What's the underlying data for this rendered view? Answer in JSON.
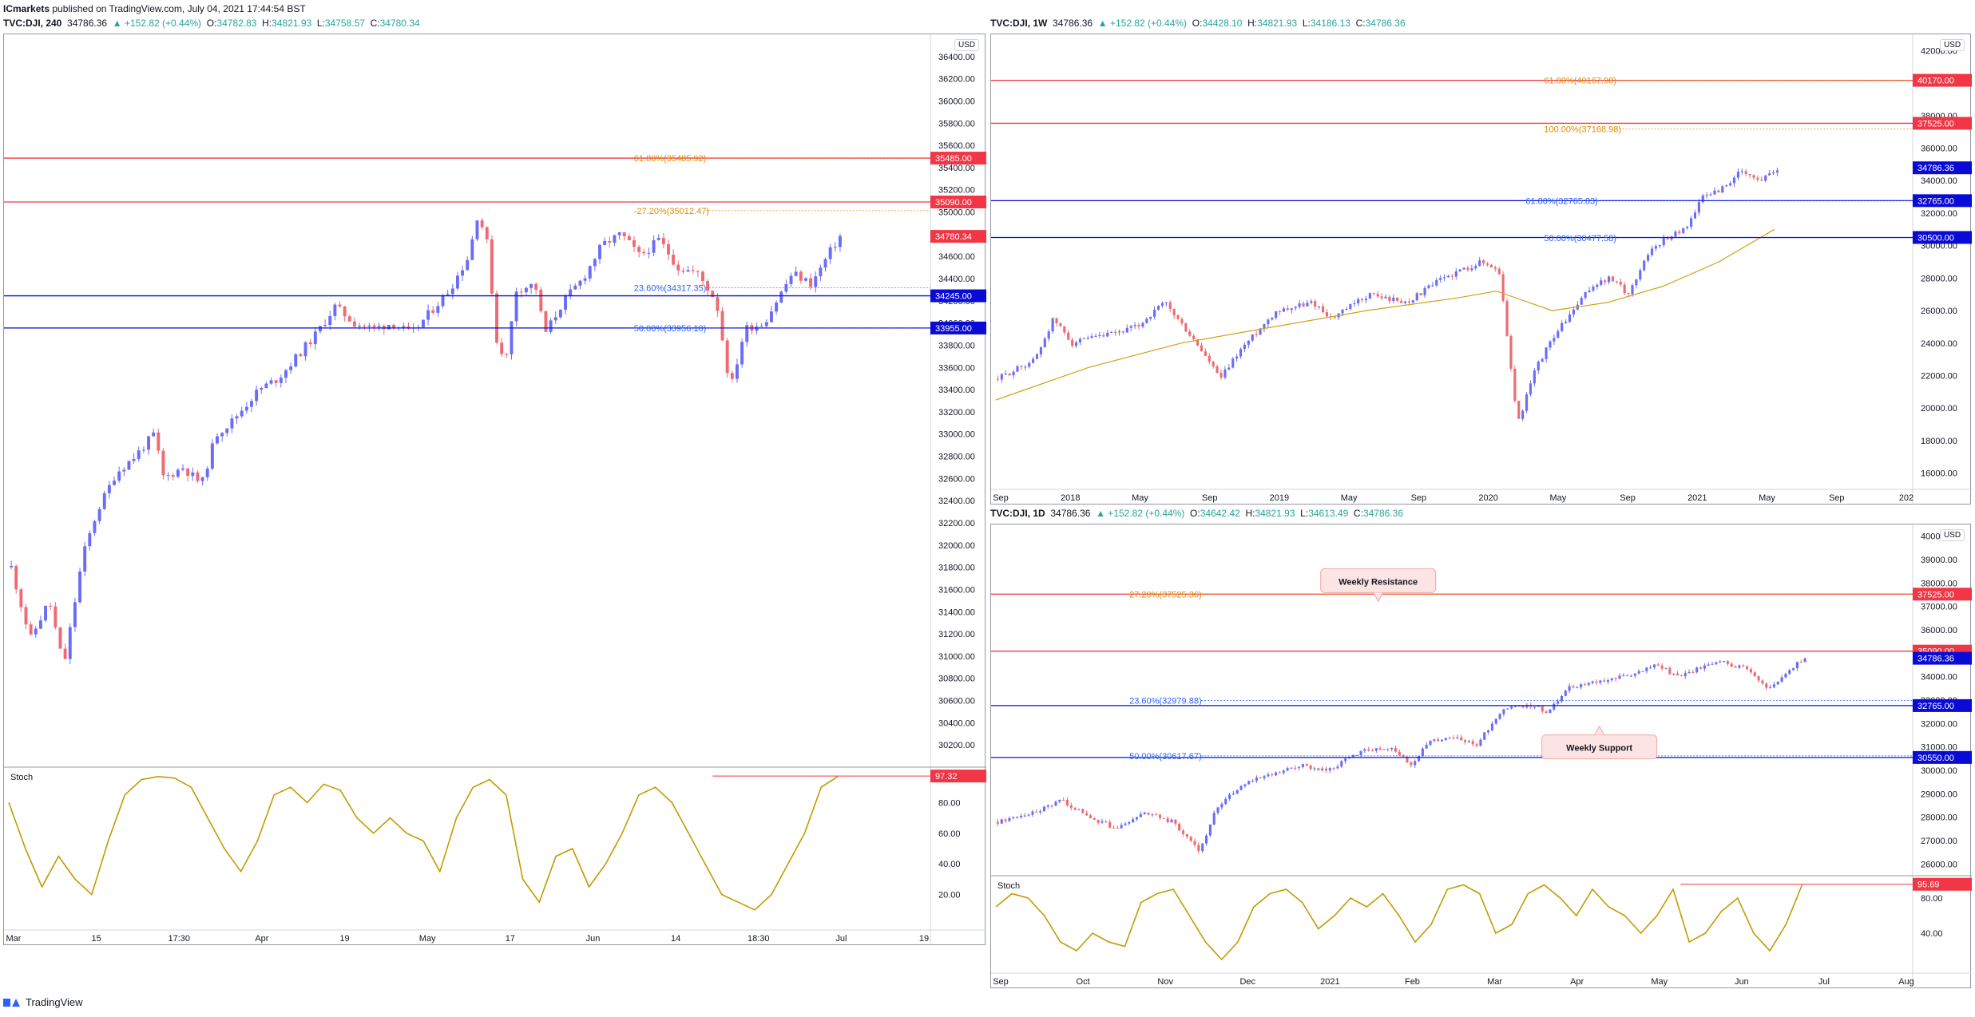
{
  "publish": {
    "author": "ICmarkets",
    "text": " published on TradingView.com, July 04, 2021 17:44:54 BST"
  },
  "footer": {
    "brand": "TradingView"
  },
  "colors": {
    "up": "#6b6ef5",
    "down": "#ef6b73",
    "resistance": "#f23645",
    "support": "#0a0ad6",
    "fib_orange": "#e08b00",
    "fib_blue": "#2962ff",
    "stoch": "#c49a00",
    "ma": "#d4a017"
  },
  "chart_data": [
    {
      "id": "dji-240",
      "type": "candlestick",
      "header": {
        "symbol": "TVC:DJI, 240",
        "last": "34786.36",
        "change": "▲ +152.82 (+0.44%)",
        "o": "34782.83",
        "h": "34821.93",
        "l": "34758.57",
        "c": "34780.34"
      },
      "currency": "USD",
      "ylim": [
        30000,
        36600
      ],
      "yticks": [
        "36400.00",
        "36200.00",
        "36000.00",
        "35800.00",
        "35600.00",
        "35400.00",
        "35200.00",
        "35000.00",
        "34800.00",
        "34600.00",
        "34400.00",
        "34200.00",
        "34000.00",
        "33800.00",
        "33600.00",
        "33400.00",
        "33200.00",
        "33000.00",
        "32800.00",
        "32600.00",
        "32400.00",
        "32200.00",
        "32000.00",
        "31800.00",
        "31600.00",
        "31400.00",
        "31200.00",
        "31000.00",
        "30800.00",
        "30600.00",
        "30400.00",
        "30200.00"
      ],
      "xticks": [
        "Mar",
        "15",
        "17:30",
        "Apr",
        "19",
        "May",
        "17",
        "Jun",
        "14",
        "18:30",
        "Jul",
        "19"
      ],
      "close_path": [
        [
          0,
          31800
        ],
        [
          0.02,
          31150
        ],
        [
          0.04,
          31500
        ],
        [
          0.055,
          30900
        ],
        [
          0.075,
          31900
        ],
        [
          0.09,
          32300
        ],
        [
          0.11,
          32650
        ],
        [
          0.13,
          32800
        ],
        [
          0.15,
          33000
        ],
        [
          0.16,
          32600
        ],
        [
          0.18,
          32700
        ],
        [
          0.2,
          32550
        ],
        [
          0.215,
          33000
        ],
        [
          0.23,
          33100
        ],
        [
          0.26,
          33400
        ],
        [
          0.28,
          33500
        ],
        [
          0.3,
          33700
        ],
        [
          0.32,
          33900
        ],
        [
          0.34,
          34150
        ],
        [
          0.36,
          34000
        ],
        [
          0.38,
          33950
        ],
        [
          0.4,
          34000
        ],
        [
          0.42,
          33900
        ],
        [
          0.44,
          34100
        ],
        [
          0.46,
          34300
        ],
        [
          0.48,
          34600
        ],
        [
          0.49,
          35000
        ],
        [
          0.5,
          34700
        ],
        [
          0.51,
          33800
        ],
        [
          0.52,
          33700
        ],
        [
          0.53,
          34300
        ],
        [
          0.55,
          34350
        ],
        [
          0.56,
          33900
        ],
        [
          0.58,
          34200
        ],
        [
          0.6,
          34400
        ],
        [
          0.62,
          34700
        ],
        [
          0.64,
          34800
        ],
        [
          0.66,
          34600
        ],
        [
          0.68,
          34750
        ],
        [
          0.7,
          34500
        ],
        [
          0.72,
          34450
        ],
        [
          0.74,
          34200
        ],
        [
          0.755,
          33400
        ],
        [
          0.77,
          33950
        ],
        [
          0.79,
          34000
        ],
        [
          0.81,
          34300
        ],
        [
          0.82,
          34450
        ],
        [
          0.84,
          34350
        ],
        [
          0.86,
          34650
        ],
        [
          0.87,
          34780
        ]
      ],
      "levels": [
        {
          "price": 35485,
          "label": "35485.00",
          "kind": "resistance"
        },
        {
          "price": 35090,
          "label": "35090.00",
          "kind": "resistance"
        },
        {
          "price": 34245,
          "label": "34245.00",
          "kind": "support"
        },
        {
          "price": 33955,
          "label": "33955.00",
          "kind": "support"
        }
      ],
      "fib_labels": [
        {
          "text": "61.80%(35485.92)",
          "price": 35485,
          "color": "orange",
          "x": 0.68
        },
        {
          "text": "-27.20%(35012.47)",
          "price": 35012,
          "color": "orange",
          "x": 0.68
        },
        {
          "text": "23.60%(34317.35)",
          "price": 34317,
          "color": "blue",
          "x": 0.68
        },
        {
          "text": "50.00%(33956.10)",
          "price": 33956,
          "color": "blue",
          "x": 0.68
        }
      ],
      "last_label": {
        "price": 34780.34,
        "label": "34780.34"
      },
      "stoch": {
        "name": "Stoch",
        "value": "97.32",
        "yticks": [
          "80.00",
          "60.00",
          "40.00",
          "20.00"
        ],
        "ylim": [
          0,
          100
        ],
        "values": [
          80,
          50,
          25,
          45,
          30,
          20,
          55,
          85,
          95,
          97,
          96,
          90,
          70,
          50,
          35,
          55,
          85,
          90,
          80,
          92,
          88,
          70,
          60,
          70,
          60,
          55,
          35,
          70,
          90,
          95,
          85,
          30,
          15,
          45,
          50,
          25,
          40,
          60,
          85,
          90,
          80,
          60,
          40,
          20,
          15,
          10,
          20,
          40,
          60,
          90,
          97
        ]
      }
    },
    {
      "id": "dji-1w",
      "type": "candlestick",
      "header": {
        "symbol": "TVC:DJI, 1W",
        "last": "34786.36",
        "change": "▲ +152.82 (+0.44%)",
        "o": "34428.10",
        "h": "34821.93",
        "l": "34186.13",
        "c": "34786.36"
      },
      "currency": "USD",
      "ylim": [
        15000,
        43000
      ],
      "yticks": [
        "42000.00",
        "40000.00",
        "38000.00",
        "36000.00",
        "34000.00",
        "32000.00",
        "30000.00",
        "28000.00",
        "26000.00",
        "24000.00",
        "22000.00",
        "20000.00",
        "18000.00",
        "16000.00"
      ],
      "xticks": [
        "Sep",
        "2018",
        "May",
        "Sep",
        "2019",
        "May",
        "Sep",
        "2020",
        "May",
        "Sep",
        "2021",
        "May",
        "Sep",
        "202"
      ],
      "close_path": [
        [
          0,
          21800
        ],
        [
          0.04,
          23000
        ],
        [
          0.06,
          25500
        ],
        [
          0.08,
          24000
        ],
        [
          0.12,
          24500
        ],
        [
          0.15,
          25000
        ],
        [
          0.18,
          26500
        ],
        [
          0.2,
          25000
        ],
        [
          0.22,
          23500
        ],
        [
          0.24,
          21800
        ],
        [
          0.26,
          23500
        ],
        [
          0.3,
          26000
        ],
        [
          0.34,
          26500
        ],
        [
          0.36,
          25500
        ],
        [
          0.4,
          27000
        ],
        [
          0.44,
          26500
        ],
        [
          0.48,
          28000
        ],
        [
          0.52,
          29000
        ],
        [
          0.54,
          28500
        ],
        [
          0.55,
          24000
        ],
        [
          0.56,
          19000
        ],
        [
          0.58,
          22500
        ],
        [
          0.6,
          24500
        ],
        [
          0.62,
          26000
        ],
        [
          0.64,
          27500
        ],
        [
          0.66,
          28000
        ],
        [
          0.68,
          27000
        ],
        [
          0.7,
          29500
        ],
        [
          0.72,
          30500
        ],
        [
          0.74,
          31000
        ],
        [
          0.76,
          33000
        ],
        [
          0.78,
          33500
        ],
        [
          0.8,
          34500
        ],
        [
          0.82,
          34000
        ],
        [
          0.84,
          34786
        ]
      ],
      "ma_path": [
        [
          0,
          20500
        ],
        [
          0.1,
          22500
        ],
        [
          0.2,
          24000
        ],
        [
          0.3,
          25000
        ],
        [
          0.4,
          26000
        ],
        [
          0.5,
          26800
        ],
        [
          0.54,
          27200
        ],
        [
          0.6,
          26000
        ],
        [
          0.66,
          26500
        ],
        [
          0.72,
          27500
        ],
        [
          0.78,
          29000
        ],
        [
          0.84,
          31000
        ]
      ],
      "levels": [
        {
          "price": 40170,
          "label": "40170.00",
          "kind": "resistance"
        },
        {
          "price": 37525,
          "label": "37525.00",
          "kind": "resistance"
        },
        {
          "price": 32765,
          "label": "32765.00",
          "kind": "support"
        },
        {
          "price": 30500,
          "label": "30500.00",
          "kind": "support"
        }
      ],
      "fib_labels": [
        {
          "text": "61.80%(40167.98)",
          "price": 40170,
          "color": "orange",
          "x": 0.6
        },
        {
          "text": "100.00%(37168.98)",
          "price": 37168,
          "color": "orange",
          "x": 0.6
        },
        {
          "text": "61.80%(32765.83)",
          "price": 32765,
          "color": "blue",
          "x": 0.58
        },
        {
          "text": "50.00%(30477.58)",
          "price": 30477,
          "color": "blue",
          "x": 0.6
        }
      ],
      "last_label": {
        "price": 34786.36,
        "label": "34786.36"
      }
    },
    {
      "id": "dji-1d",
      "type": "candlestick",
      "header": {
        "symbol": "TVC:DJI, 1D",
        "last": "34786.36",
        "change": "▲ +152.82 (+0.44%)",
        "o": "34642.42",
        "h": "34821.93",
        "l": "34613.49",
        "c": "34786.36"
      },
      "currency": "USD",
      "ylim": [
        25500,
        40500
      ],
      "yticks": [
        "40000.00",
        "39000.00",
        "38000.00",
        "37000.00",
        "36000.00",
        "35000.00",
        "34000.00",
        "33000.00",
        "32000.00",
        "31000.00",
        "30000.00",
        "29000.00",
        "28000.00",
        "27000.00",
        "26000.00"
      ],
      "xticks": [
        "Sep",
        "Oct",
        "Nov",
        "Dec",
        "2021",
        "Feb",
        "Mar",
        "Apr",
        "May",
        "Jun",
        "Jul",
        "Aug"
      ],
      "close_path": [
        [
          0,
          27800
        ],
        [
          0.04,
          28200
        ],
        [
          0.07,
          28700
        ],
        [
          0.1,
          28000
        ],
        [
          0.13,
          27500
        ],
        [
          0.16,
          28200
        ],
        [
          0.19,
          27800
        ],
        [
          0.22,
          26600
        ],
        [
          0.24,
          28500
        ],
        [
          0.27,
          29500
        ],
        [
          0.3,
          29800
        ],
        [
          0.33,
          30200
        ],
        [
          0.36,
          30000
        ],
        [
          0.4,
          30900
        ],
        [
          0.43,
          31000
        ],
        [
          0.45,
          30200
        ],
        [
          0.47,
          31200
        ],
        [
          0.5,
          31500
        ],
        [
          0.52,
          31000
        ],
        [
          0.55,
          32600
        ],
        [
          0.58,
          32800
        ],
        [
          0.6,
          32500
        ],
        [
          0.62,
          33500
        ],
        [
          0.65,
          33800
        ],
        [
          0.68,
          34000
        ],
        [
          0.7,
          34200
        ],
        [
          0.72,
          34500
        ],
        [
          0.74,
          34000
        ],
        [
          0.76,
          34300
        ],
        [
          0.79,
          34600
        ],
        [
          0.82,
          34300
        ],
        [
          0.84,
          33400
        ],
        [
          0.86,
          34200
        ],
        [
          0.88,
          34786
        ]
      ],
      "levels": [
        {
          "price": 37525,
          "label": "37525.00",
          "kind": "resistance"
        },
        {
          "price": 35090,
          "label": "35090.00",
          "kind": "resistance"
        },
        {
          "price": 32765,
          "label": "32765.00",
          "kind": "support"
        },
        {
          "price": 30550,
          "label": "30550.00",
          "kind": "support"
        }
      ],
      "fib_labels": [
        {
          "text": "27.20%(37525.36)",
          "price": 37525,
          "color": "orange",
          "x": 0.15
        },
        {
          "text": "23.60%(32979.88)",
          "price": 32979,
          "color": "blue",
          "x": 0.15
        },
        {
          "text": "50.00%(30617.67)",
          "price": 30617,
          "color": "blue",
          "x": 0.15
        }
      ],
      "annotations": [
        {
          "text": "Weekly Resistance",
          "price": 38100,
          "x": 0.42,
          "arrow": "down"
        },
        {
          "text": "Weekly Support",
          "price": 31000,
          "x": 0.66,
          "arrow": "up"
        }
      ],
      "last_label": {
        "price": 34786.36,
        "label": "34786.36"
      },
      "stoch": {
        "name": "Stoch",
        "value": "95.69",
        "yticks": [
          "80.00",
          "40.00"
        ],
        "ylim": [
          0,
          100
        ],
        "values": [
          70,
          85,
          80,
          60,
          30,
          20,
          40,
          30,
          25,
          75,
          85,
          90,
          60,
          30,
          10,
          30,
          70,
          85,
          90,
          75,
          45,
          60,
          80,
          70,
          85,
          60,
          30,
          50,
          90,
          95,
          85,
          40,
          50,
          85,
          95,
          80,
          60,
          90,
          70,
          60,
          40,
          60,
          90,
          30,
          40,
          65,
          80,
          40,
          20,
          50,
          95
        ]
      }
    }
  ]
}
